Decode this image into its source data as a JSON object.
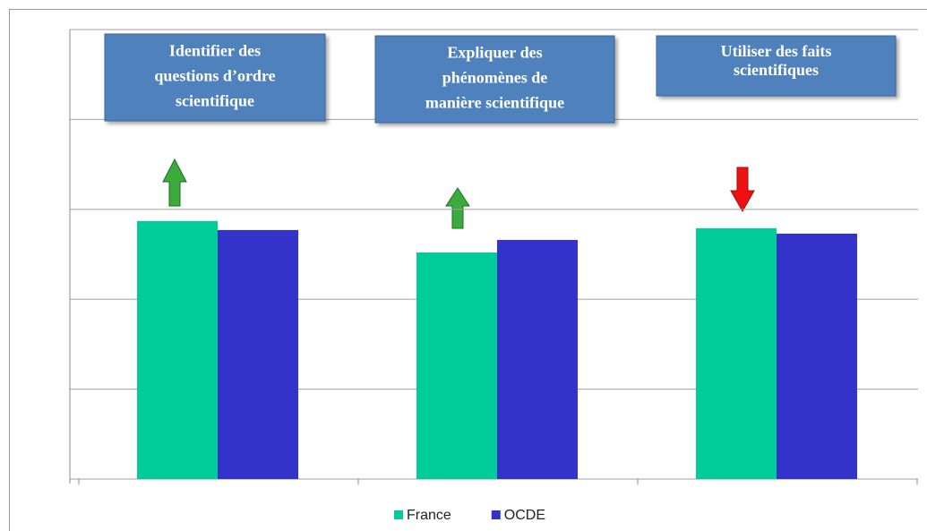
{
  "chart_data": {
    "type": "bar",
    "categories": [
      null,
      null,
      null
    ],
    "series": [
      {
        "name": "France",
        "color": "#00cc99",
        "values": [
          287,
          252,
          279
        ]
      },
      {
        "name": "OCDE",
        "color": "#3333cc",
        "values": [
          277,
          266,
          273
        ]
      }
    ],
    "ylim": [
      0,
      500
    ],
    "yticks": [
      0,
      100,
      200,
      300,
      400,
      500
    ],
    "grid": true,
    "annotations": [
      [
        "Identifier des",
        "questions d’ordre",
        "scientifique"
      ],
      [
        "Expliquer des",
        "phénomènes  de",
        "manière scientifique"
      ],
      [
        "Utiliser des faits",
        "scientifiques"
      ]
    ],
    "legend": "bottom"
  }
}
